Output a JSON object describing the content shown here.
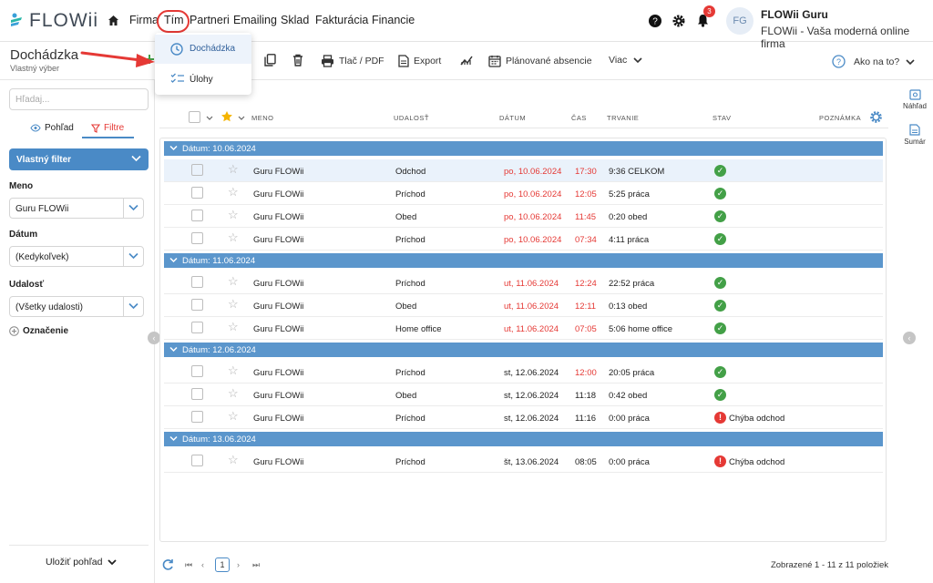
{
  "app": {
    "logo": "FLOWii"
  },
  "nav": {
    "items": [
      "Firma",
      "Tím",
      "Partneri",
      "Emailing",
      "Sklad",
      "Fakturácia",
      "Financie"
    ]
  },
  "header": {
    "notification_count": "3",
    "avatar_initials": "FG",
    "user_name": "FLOWii Guru",
    "user_subtitle": "FLOWii - Vaša moderná online firma"
  },
  "page": {
    "title": "Dochádzka",
    "subtitle": "Vlastný výber"
  },
  "toolbar": {
    "print_label": "Tlač / PDF",
    "export_label": "Export",
    "planned_label": "Plánované absencie",
    "more_label": "Viac",
    "help_label": "Ako na to?"
  },
  "dropdown": {
    "items": [
      "Dochádzka",
      "Úlohy"
    ]
  },
  "sidebar": {
    "search_placeholder": "Hľadaj...",
    "tab_view": "Pohľad",
    "tab_filters": "Filtre",
    "custom_filter": "Vlastný filter",
    "filters": [
      {
        "label": "Meno",
        "value": "Guru FLOWii"
      },
      {
        "label": "Dátum",
        "value": "(Kedykoľvek)"
      },
      {
        "label": "Udalosť",
        "value": "(Všetky udalosti)"
      }
    ],
    "marking": "Označenie",
    "save_view": "Uložiť pohľad"
  },
  "table": {
    "columns": {
      "name": "MENO",
      "event": "UDALOSŤ",
      "date": "DÁTUM",
      "time": "ČAS",
      "duration": "TRVANIE",
      "status": "STAV",
      "note": "POZNÁMKA"
    },
    "groups": [
      {
        "label": "Dátum: 10.06.2024",
        "rows": [
          {
            "name": "Guru FLOWii",
            "event": "Odchod",
            "date": "po, 10.06.2024",
            "time": "17:30",
            "duration": "9:36 CELKOM",
            "status": "ok",
            "status_text": ""
          },
          {
            "name": "Guru FLOWii",
            "event": "Príchod",
            "date": "po, 10.06.2024",
            "time": "12:05",
            "duration": "5:25 práca",
            "status": "ok",
            "status_text": ""
          },
          {
            "name": "Guru FLOWii",
            "event": "Obed",
            "date": "po, 10.06.2024",
            "time": "11:45",
            "duration": "0:20 obed",
            "status": "ok",
            "status_text": ""
          },
          {
            "name": "Guru FLOWii",
            "event": "Príchod",
            "date": "po, 10.06.2024",
            "time": "07:34",
            "duration": "4:11 práca",
            "status": "ok",
            "status_text": ""
          }
        ]
      },
      {
        "label": "Dátum: 11.06.2024",
        "rows": [
          {
            "name": "Guru FLOWii",
            "event": "Príchod",
            "date": "ut, 11.06.2024",
            "time": "12:24",
            "duration": "22:52 práca",
            "status": "ok",
            "status_text": ""
          },
          {
            "name": "Guru FLOWii",
            "event": "Obed",
            "date": "ut, 11.06.2024",
            "time": "12:11",
            "duration": "0:13 obed",
            "status": "ok",
            "status_text": ""
          },
          {
            "name": "Guru FLOWii",
            "event": "Home office",
            "date": "ut, 11.06.2024",
            "time": "07:05",
            "duration": "5:06 home office",
            "status": "ok",
            "status_text": ""
          }
        ]
      },
      {
        "label": "Dátum: 12.06.2024",
        "rows": [
          {
            "name": "Guru FLOWii",
            "event": "Príchod",
            "date": "st, 12.06.2024",
            "time": "12:00",
            "duration": "20:05 práca",
            "status": "ok",
            "status_text": ""
          },
          {
            "name": "Guru FLOWii",
            "event": "Obed",
            "date": "st, 12.06.2024",
            "time": "11:18",
            "duration": "0:42 obed",
            "status": "ok",
            "status_text": ""
          },
          {
            "name": "Guru FLOWii",
            "event": "Príchod",
            "date": "st, 12.06.2024",
            "time": "11:16",
            "duration": "0:00 práca",
            "status": "error",
            "status_text": "Chýba odchod"
          }
        ]
      },
      {
        "label": "Dátum: 13.06.2024",
        "rows": [
          {
            "name": "Guru FLOWii",
            "event": "Príchod",
            "date": "št, 13.06.2024",
            "time": "08:05",
            "duration": "0:00 práca",
            "status": "error",
            "status_text": "Chýba odchod"
          }
        ]
      }
    ]
  },
  "pager": {
    "current_page": "1",
    "showing": "Zobrazené 1 - 11 z 11 položiek"
  },
  "rightpanel": {
    "preview": "Náhľad",
    "summary": "Sumár"
  },
  "colors": {
    "accent": "#4a8ac6",
    "group": "#5b96cc",
    "error": "#e53935",
    "ok": "#43a047"
  }
}
